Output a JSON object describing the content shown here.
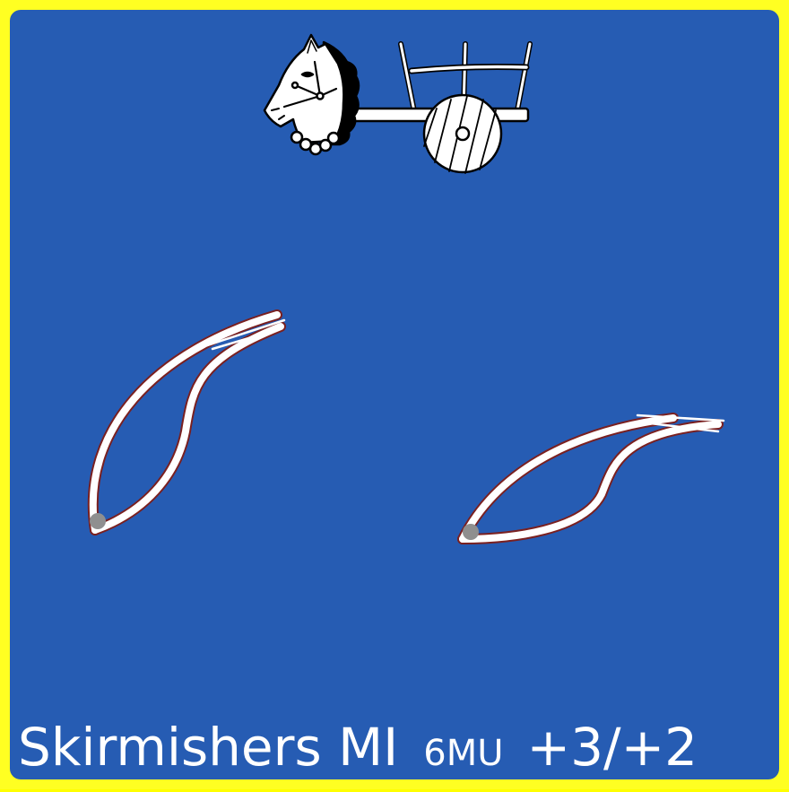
{
  "unit_card": {
    "unit_name": "Skirmishers MI",
    "movement": "6MU",
    "combat_factors": "+3/+2",
    "icons": {
      "top": "horse-chariot-icon",
      "left": "bow-icon",
      "right": "bow-icon"
    },
    "colors": {
      "border": "#ffff22",
      "field": "#265cb3",
      "caption_text": "#ffffff"
    }
  }
}
